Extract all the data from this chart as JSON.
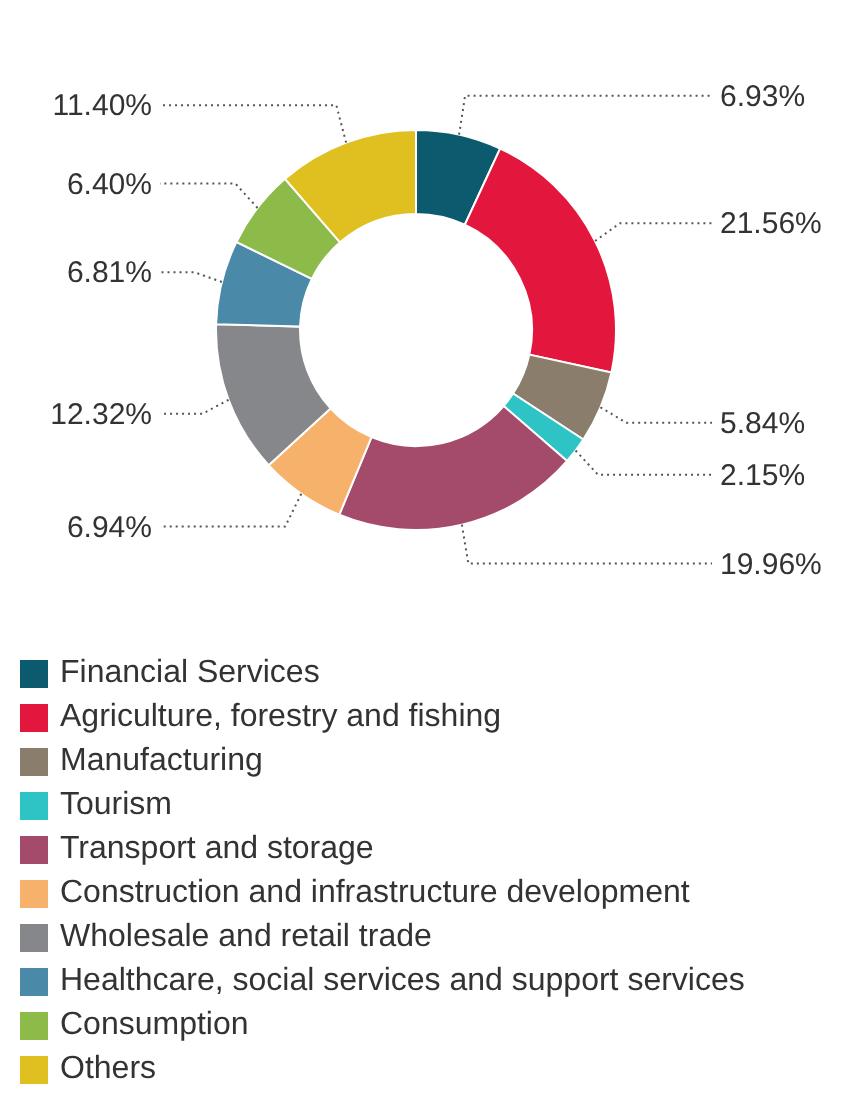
{
  "chart_data": {
    "type": "donut",
    "categories": [
      "Financial Services",
      "Agriculture, forestry and fishing",
      "Manufacturing",
      "Tourism",
      "Transport and storage",
      "Construction and infrastructure development",
      "Wholesale and retail trade",
      "Healthcare, social services and support services",
      "Consumption",
      "Others"
    ],
    "values": [
      6.93,
      21.56,
      5.84,
      2.15,
      19.96,
      6.94,
      12.32,
      6.81,
      6.4,
      11.4
    ],
    "value_labels": [
      "6.93%",
      "21.56%",
      "5.84%",
      "2.15%",
      "19.96%",
      "6.94%",
      "12.32%",
      "6.81%",
      "6.40%",
      "11.40%"
    ],
    "colors": [
      "#0b5a6e",
      "#e3173e",
      "#8b7d6b",
      "#2ec4c6",
      "#a44a6a",
      "#f6b26b",
      "#86878a",
      "#4a8aa8",
      "#8dbb4a",
      "#e0c020"
    ],
    "legend": "bottom"
  }
}
